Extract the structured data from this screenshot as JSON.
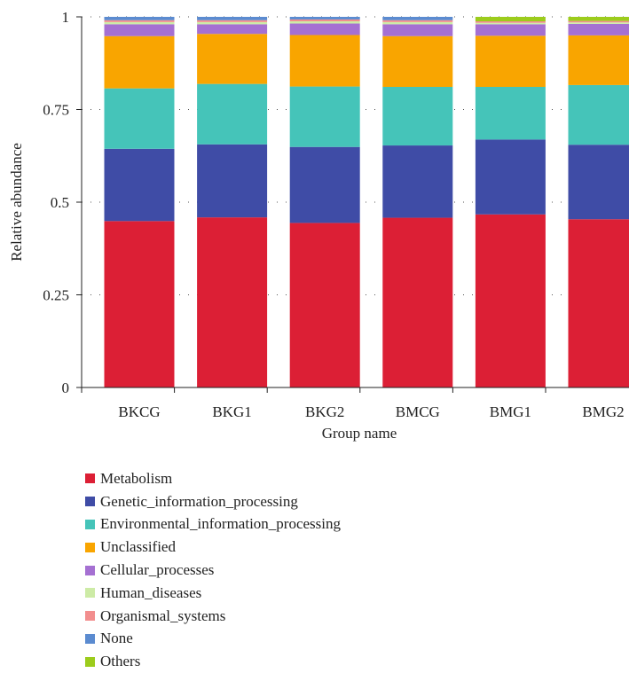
{
  "chart_data": {
    "type": "bar",
    "stacked": true,
    "xlabel": "Group name",
    "ylabel": "Relative abundance",
    "ylim": [
      0,
      1
    ],
    "yticks": [
      0,
      0.25,
      0.5,
      0.75,
      1
    ],
    "ytick_labels": [
      "0",
      "0.25",
      "0.5",
      "0.75",
      "1"
    ],
    "grid": "dotted horizontal",
    "legend_position": "bottom",
    "categories": [
      "BKCG",
      "BKG1",
      "BKG2",
      "BMCG",
      "BMG1",
      "BMG2"
    ],
    "series": [
      {
        "name": "Metabolism",
        "color": "#dc1f35",
        "values": [
          0.449,
          0.459,
          0.444,
          0.458,
          0.467,
          0.454
        ]
      },
      {
        "name": "Genetic_information_processing",
        "color": "#3f4ca6",
        "values": [
          0.195,
          0.197,
          0.205,
          0.195,
          0.202,
          0.201
        ]
      },
      {
        "name": "Environmental_information_processing",
        "color": "#45c4b9",
        "values": [
          0.163,
          0.163,
          0.163,
          0.158,
          0.142,
          0.161
        ]
      },
      {
        "name": "Unclassified",
        "color": "#f9a500",
        "values": [
          0.141,
          0.135,
          0.139,
          0.137,
          0.138,
          0.134
        ]
      },
      {
        "name": "Cellular_processes",
        "color": "#a570d2",
        "values": [
          0.032,
          0.026,
          0.031,
          0.032,
          0.031,
          0.031
        ]
      },
      {
        "name": "Human_diseases",
        "color": "#cdeba6",
        "values": [
          0.006,
          0.006,
          0.006,
          0.006,
          0.004,
          0.004
        ]
      },
      {
        "name": "Organismal_systems",
        "color": "#f28e8e",
        "values": [
          0.005,
          0.005,
          0.005,
          0.005,
          0.004,
          0.004
        ]
      },
      {
        "name": "None",
        "color": "#5b8bd0",
        "values": [
          0.009,
          0.009,
          0.007,
          0.009,
          0.0,
          0.0
        ]
      },
      {
        "name": "Others",
        "color": "#9ccc1c",
        "values": [
          0.0,
          0.0,
          0.0,
          0.0,
          0.012,
          0.011
        ]
      }
    ]
  }
}
